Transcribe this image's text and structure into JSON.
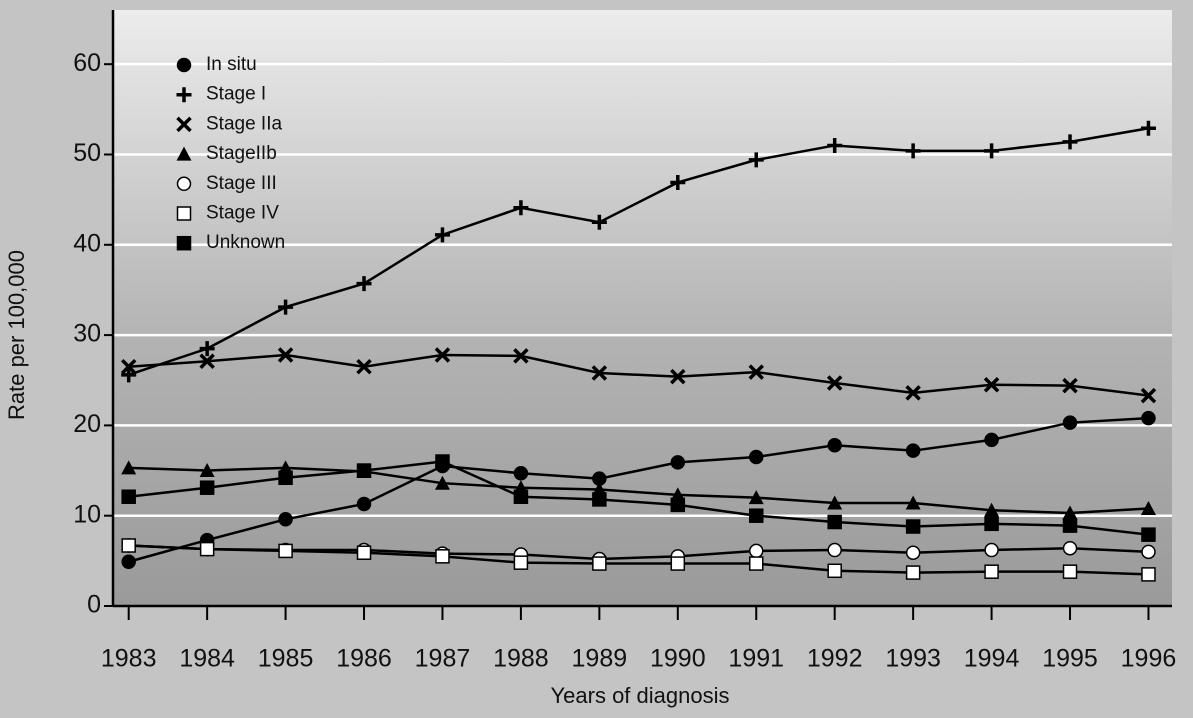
{
  "chart_data": {
    "type": "line",
    "x_label": "Years of diagnosis",
    "y_label": "Rate per 100,000",
    "x": [
      1983,
      1984,
      1985,
      1986,
      1987,
      1988,
      1989,
      1990,
      1991,
      1992,
      1993,
      1994,
      1995,
      1996
    ],
    "xlim": [
      1982.8,
      1996.3
    ],
    "xticks": [
      1983,
      1984,
      1985,
      1986,
      1987,
      1988,
      1989,
      1990,
      1991,
      1992,
      1993,
      1994,
      1995,
      1996
    ],
    "ylim": [
      0,
      66
    ],
    "yticks": [
      0,
      10,
      20,
      30,
      40,
      50,
      60
    ],
    "grid": true,
    "legend": "upper-left",
    "series": [
      {
        "name": "In situ",
        "color": "#000000",
        "marker": "filled-circle",
        "values": [
          4.9,
          7.3,
          9.6,
          11.3,
          15.5,
          14.7,
          14.1,
          15.9,
          16.5,
          17.8,
          17.2,
          18.4,
          20.3,
          20.8
        ]
      },
      {
        "name": "Stage I",
        "color": "#000000",
        "marker": "plus",
        "values": [
          25.6,
          28.5,
          33.1,
          35.7,
          41.1,
          44.1,
          42.5,
          46.9,
          49.4,
          51.0,
          50.4,
          50.4,
          51.4,
          52.9
        ]
      },
      {
        "name": "Stage IIa",
        "color": "#000000",
        "marker": "cross",
        "values": [
          26.5,
          27.1,
          27.8,
          26.5,
          27.8,
          27.7,
          25.8,
          25.4,
          25.9,
          24.7,
          23.6,
          24.5,
          24.4,
          23.3
        ]
      },
      {
        "name": "StageIIb",
        "color": "#000000",
        "marker": "triangle",
        "values": [
          15.3,
          15.0,
          15.3,
          14.9,
          13.6,
          13.1,
          12.9,
          12.3,
          12.0,
          11.4,
          11.4,
          10.6,
          10.3,
          10.8
        ]
      },
      {
        "name": "Stage III",
        "color": "#000000",
        "marker": "open-circle",
        "values": [
          6.7,
          6.3,
          6.2,
          6.2,
          5.8,
          5.7,
          5.2,
          5.5,
          6.1,
          6.2,
          5.9,
          6.2,
          6.4,
          6.0
        ]
      },
      {
        "name": "Stage IV",
        "color": "#000000",
        "marker": "open-square",
        "values": [
          6.7,
          6.3,
          6.1,
          5.9,
          5.5,
          4.8,
          4.7,
          4.7,
          4.7,
          3.9,
          3.7,
          3.8,
          3.8,
          3.5
        ]
      },
      {
        "name": "Unknown",
        "color": "#000000",
        "marker": "filled-square",
        "values": [
          12.1,
          13.1,
          14.2,
          15.0,
          16.0,
          12.1,
          11.8,
          11.2,
          10.0,
          9.3,
          8.8,
          9.1,
          8.9,
          7.9
        ]
      }
    ]
  }
}
